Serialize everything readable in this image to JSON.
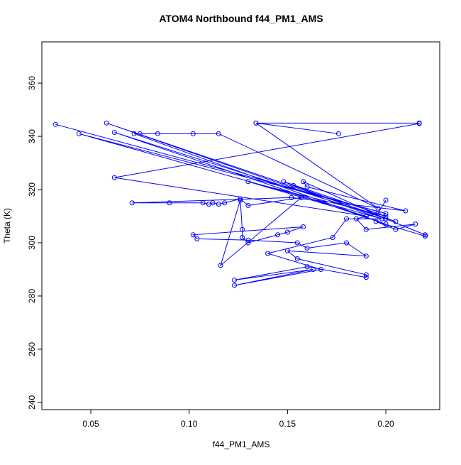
{
  "chart_data": {
    "type": "line",
    "title": "ATOM4 Northbound f44_PM1_AMS",
    "x_label": "f44_PM1_AMS",
    "y_label": "Theta (K)",
    "color": "#0000ff",
    "markers": "open-circle",
    "x": [
      0.032,
      0.2,
      0.044,
      0.198,
      0.058,
      0.205,
      0.062,
      0.2,
      0.072,
      0.075,
      0.084,
      0.102,
      0.115,
      0.196,
      0.134,
      0.176,
      0.134,
      0.217,
      0.217,
      0.062,
      0.19,
      0.13,
      0.2,
      0.148,
      0.153,
      0.2,
      0.158,
      0.16,
      0.21,
      0.152,
      0.071,
      0.09,
      0.107,
      0.11,
      0.112,
      0.115,
      0.118,
      0.126,
      0.13,
      0.157,
      0.116,
      0.126,
      0.127,
      0.127,
      0.13,
      0.145,
      0.15,
      0.158,
      0.102,
      0.104,
      0.13,
      0.155,
      0.16,
      0.18,
      0.19,
      0.15,
      0.155,
      0.19,
      0.19,
      0.16,
      0.123,
      0.163,
      0.123,
      0.167,
      0.14,
      0.173,
      0.18,
      0.2,
      0.22,
      0.22,
      0.195,
      0.205,
      0.215,
      0.19,
      0.185,
      0.196,
      0.2
    ],
    "values": [
      344.5,
      311,
      341,
      309,
      345,
      308,
      341.5,
      307,
      341,
      341,
      341,
      341,
      341,
      313,
      345,
      341,
      345,
      345,
      344.8,
      324.5,
      310,
      323,
      310,
      323,
      321.5,
      309,
      323,
      321,
      312,
      317,
      315,
      315,
      315,
      314.5,
      315,
      314.5,
      315,
      316.5,
      314,
      317,
      291.5,
      316,
      305,
      302,
      300,
      303,
      304,
      306,
      303,
      301.5,
      301,
      300,
      298,
      300,
      295,
      297,
      294,
      288,
      287,
      291,
      286,
      290,
      284,
      290,
      296,
      302,
      309,
      309,
      303,
      302.5,
      308,
      305,
      307,
      305,
      309,
      311,
      316
    ],
    "xlim": [
      0.0251,
      0.2274
    ],
    "ylim": [
      237.3,
      375.5
    ],
    "xticks": [
      0.05,
      {
        "value": 0.1,
        "label": "0.10"
      },
      0.15,
      {
        "value": 0.2,
        "label": "0.20"
      }
    ],
    "yticks": [
      240,
      260,
      280,
      300,
      320,
      340,
      360
    ]
  }
}
